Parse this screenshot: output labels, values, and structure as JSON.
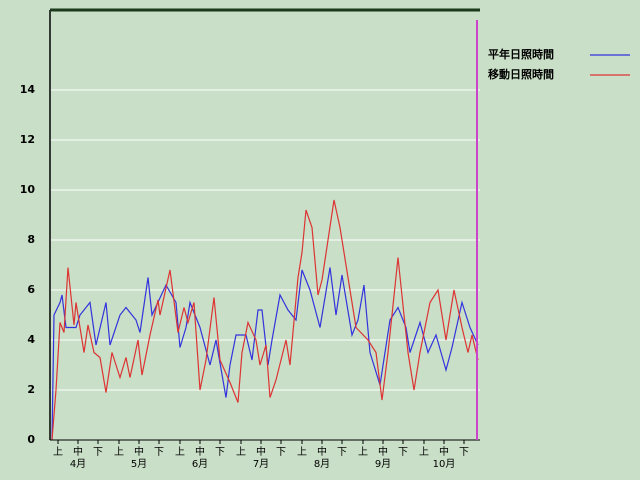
{
  "chart_data": {
    "type": "line",
    "series": [
      {
        "name": "平年日照時間",
        "color": "#3333dd",
        "x": [
          0,
          1,
          4,
          5,
          7,
          12,
          14,
          19,
          22,
          27,
          29,
          34,
          37,
          42,
          44,
          48,
          50,
          57,
          62,
          64,
          67,
          69,
          74,
          79,
          82,
          87,
          89,
          92,
          97,
          100,
          103,
          105,
          108,
          110,
          114,
          118,
          122,
          125,
          129,
          134,
          139,
          142,
          145,
          150,
          153,
          156,
          159,
          164,
          169,
          173,
          177,
          179,
          184,
          188,
          192,
          197,
          200,
          205,
          209,
          213
        ],
        "values": [
          0,
          5,
          5.5,
          5.8,
          4.5,
          4.5,
          5,
          5.5,
          3.8,
          5.5,
          3.8,
          5,
          5.3,
          4.8,
          4.3,
          6.5,
          5,
          6.2,
          5.5,
          3.7,
          4.5,
          5.5,
          4.5,
          3,
          4,
          1.7,
          3,
          4.2,
          4.2,
          3.2,
          5.2,
          5.2,
          3,
          4,
          5.8,
          5.2,
          4.8,
          6.8,
          6,
          4.5,
          6.9,
          5,
          6.6,
          4.2,
          4.8,
          6.2,
          3.5,
          2.2,
          4.8,
          5.3,
          4.5,
          3.5,
          4.7,
          3.5,
          4.2,
          2.8,
          3.7,
          5.5,
          4.5,
          3.8
        ]
      },
      {
        "name": "移動日照時間",
        "color": "#dd3333",
        "x": [
          0,
          2,
          4,
          6,
          8,
          11,
          12,
          16,
          18,
          21,
          24,
          27,
          30,
          34,
          37,
          39,
          43,
          45,
          49,
          53,
          54,
          59,
          63,
          66,
          68,
          71,
          74,
          77,
          81,
          84,
          89,
          93,
          95,
          98,
          102,
          104,
          107,
          109,
          112,
          117,
          119,
          123,
          125,
          127,
          130,
          133,
          135,
          141,
          144,
          148,
          152,
          158,
          162,
          165,
          168,
          170,
          173,
          176,
          178,
          181,
          184,
          189,
          193,
          197,
          201,
          205,
          208,
          210,
          213
        ],
        "values": [
          0,
          2,
          4.7,
          4.3,
          6.9,
          4.6,
          5.5,
          3.5,
          4.6,
          3.5,
          3.3,
          1.9,
          3.5,
          2.5,
          3.3,
          2.5,
          4,
          2.6,
          4.2,
          5.6,
          5,
          6.8,
          4.3,
          5.3,
          4.7,
          5.5,
          2,
          3.2,
          5.7,
          3.2,
          2.3,
          1.5,
          3.5,
          4.7,
          4,
          3,
          3.8,
          1.7,
          2.4,
          4,
          3,
          6.5,
          7.5,
          9.2,
          8.5,
          5.8,
          6.4,
          9.6,
          8.5,
          6.5,
          4.5,
          4,
          3.5,
          1.6,
          3.5,
          5,
          7.3,
          5,
          3.5,
          2,
          3.5,
          5.5,
          6,
          4,
          6,
          4.5,
          3.5,
          4.2,
          3.2
        ]
      }
    ],
    "xlim": [
      0,
      213
    ],
    "xticks": [
      {
        "value": 3,
        "label": "上"
      },
      {
        "value": 13,
        "label": "中"
      },
      {
        "value": 23,
        "label": "下"
      },
      {
        "value": 33.5,
        "label": "上"
      },
      {
        "value": 43.5,
        "label": "中"
      },
      {
        "value": 53.5,
        "label": "下"
      },
      {
        "value": 64,
        "label": "上"
      },
      {
        "value": 74,
        "label": "中"
      },
      {
        "value": 84,
        "label": "下"
      },
      {
        "value": 94.5,
        "label": "上"
      },
      {
        "value": 104.5,
        "label": "中"
      },
      {
        "value": 114.5,
        "label": "下"
      },
      {
        "value": 125,
        "label": "上"
      },
      {
        "value": 135,
        "label": "中"
      },
      {
        "value": 145,
        "label": "下"
      },
      {
        "value": 155.5,
        "label": "上"
      },
      {
        "value": 165.5,
        "label": "中"
      },
      {
        "value": 175.5,
        "label": "下"
      },
      {
        "value": 186,
        "label": "上"
      },
      {
        "value": 196,
        "label": "中"
      },
      {
        "value": 206,
        "label": "下"
      }
    ],
    "month_labels": [
      {
        "value": 13,
        "label": "4月"
      },
      {
        "value": 43.5,
        "label": "5月"
      },
      {
        "value": 74,
        "label": "6月"
      },
      {
        "value": 104.5,
        "label": "7月"
      },
      {
        "value": 135,
        "label": "8月"
      },
      {
        "value": 165.5,
        "label": "9月"
      },
      {
        "value": 196,
        "label": "10月"
      }
    ],
    "ylim": [
      0,
      17.2
    ],
    "yticks": [
      0,
      2,
      4,
      6,
      8,
      10,
      12,
      14
    ],
    "grid": true
  }
}
